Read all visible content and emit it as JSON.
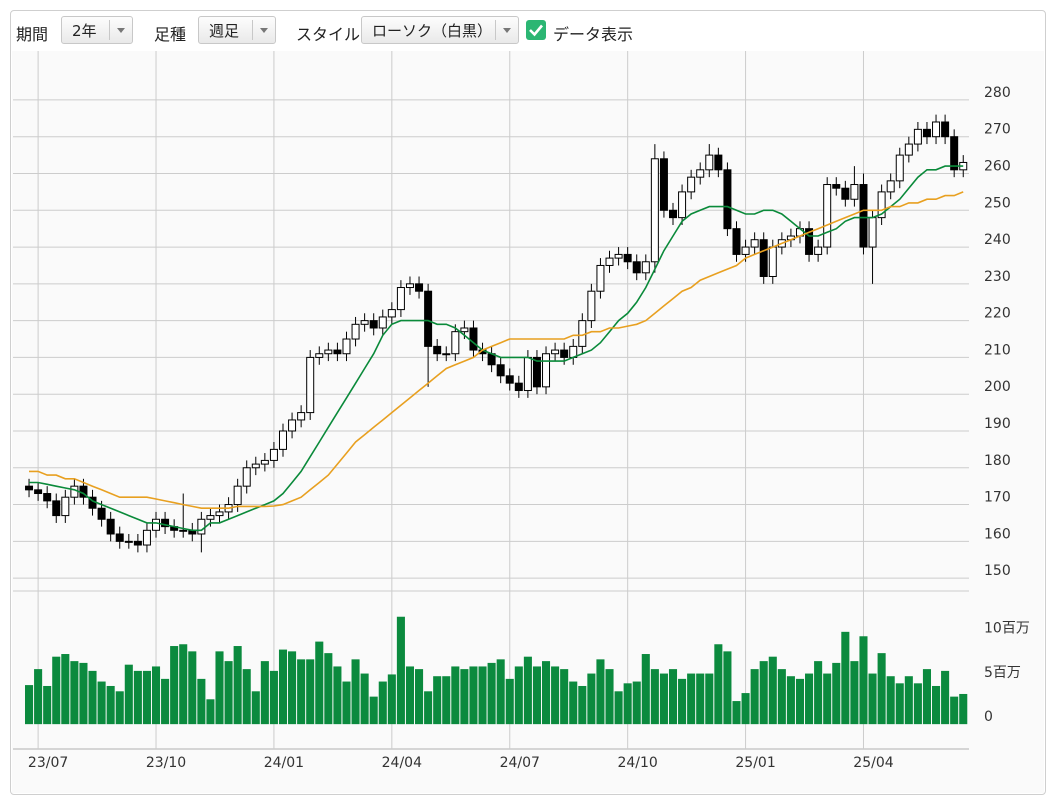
{
  "controls": {
    "period_label": "期間",
    "period_value": "2年",
    "interval_label": "足種",
    "interval_value": "週足",
    "style_label": "スタイル",
    "style_value": "ローソク（白黒）",
    "data_label": "データ表示"
  },
  "chart_data": {
    "type": "candlestick",
    "categories": [
      null,
      "23/07",
      null,
      null,
      null,
      null,
      null,
      null,
      null,
      null,
      null,
      null,
      null,
      null,
      "23/10",
      null,
      null,
      null,
      null,
      null,
      null,
      null,
      null,
      null,
      null,
      null,
      null,
      "24/01",
      null,
      null,
      null,
      null,
      null,
      null,
      null,
      null,
      null,
      null,
      null,
      null,
      "24/04",
      null,
      null,
      null,
      null,
      null,
      null,
      null,
      null,
      null,
      null,
      null,
      null,
      "24/07",
      null,
      null,
      null,
      null,
      null,
      null,
      null,
      null,
      null,
      null,
      null,
      null,
      "24/10",
      null,
      null,
      null,
      null,
      null,
      null,
      null,
      null,
      null,
      null,
      null,
      null,
      "25/01",
      null,
      null,
      null,
      null,
      null,
      null,
      null,
      null,
      null,
      null,
      null,
      null,
      "25/04",
      null,
      null,
      null,
      null,
      null,
      null,
      null,
      null,
      null,
      null,
      null
    ],
    "open": [
      175,
      174,
      173,
      171,
      167,
      172,
      175,
      172,
      169,
      166,
      162,
      160,
      160,
      159,
      163,
      166,
      164,
      163,
      163,
      162,
      166,
      167,
      168,
      170,
      175,
      180,
      181,
      182,
      185,
      190,
      193,
      195,
      210,
      211,
      212,
      211,
      215,
      219,
      220,
      218,
      221,
      223,
      229,
      230,
      228,
      213,
      211,
      211,
      217,
      218,
      212,
      211,
      208,
      205,
      203,
      201,
      210,
      202,
      211,
      212,
      210,
      213,
      220,
      228,
      235,
      237,
      238,
      236,
      233,
      236,
      264,
      250,
      248,
      255,
      259,
      261,
      265,
      261,
      245,
      238,
      240,
      242,
      232,
      240,
      242,
      243,
      245,
      238,
      240,
      257,
      256,
      253,
      257,
      240,
      248,
      255,
      258,
      265,
      268,
      272,
      270,
      274,
      270,
      261
    ],
    "high": [
      177,
      176,
      175,
      173,
      174,
      177,
      177,
      174,
      171,
      168,
      164,
      162,
      162,
      165,
      168,
      168,
      166,
      173,
      165,
      168,
      169,
      170,
      172,
      177,
      182,
      183,
      184,
      187,
      192,
      195,
      197,
      212,
      213,
      214,
      214,
      217,
      221,
      222,
      222,
      223,
      225,
      231,
      232,
      232,
      230,
      215,
      213,
      219,
      220,
      220,
      214,
      213,
      210,
      207,
      205,
      212,
      212,
      213,
      214,
      214,
      215,
      222,
      230,
      237,
      239,
      240,
      240,
      238,
      238,
      268,
      266,
      252,
      257,
      261,
      263,
      268,
      267,
      263,
      247,
      242,
      244,
      244,
      242,
      244,
      245,
      247,
      247,
      242,
      259,
      259,
      258,
      262,
      260,
      250,
      257,
      260,
      267,
      270,
      274,
      274,
      276,
      276,
      272,
      265
    ],
    "low": [
      172,
      171,
      169,
      165,
      165,
      170,
      170,
      167,
      164,
      160,
      158,
      158,
      157,
      157,
      161,
      162,
      161,
      161,
      160,
      157,
      164,
      165,
      166,
      168,
      173,
      178,
      179,
      180,
      183,
      188,
      191,
      193,
      208,
      209,
      209,
      209,
      213,
      217,
      216,
      216,
      219,
      221,
      227,
      226,
      202,
      209,
      209,
      209,
      215,
      210,
      209,
      206,
      203,
      201,
      199,
      199,
      200,
      200,
      209,
      208,
      208,
      211,
      218,
      226,
      233,
      235,
      234,
      231,
      231,
      233,
      248,
      246,
      246,
      253,
      257,
      259,
      259,
      243,
      236,
      236,
      238,
      230,
      230,
      238,
      240,
      241,
      236,
      236,
      238,
      254,
      251,
      251,
      238,
      230,
      246,
      253,
      256,
      263,
      266,
      268,
      268,
      268,
      259,
      259
    ],
    "close": [
      174,
      173,
      171,
      167,
      172,
      175,
      172,
      169,
      166,
      162,
      160,
      160,
      159,
      163,
      166,
      164,
      163,
      163,
      162,
      166,
      167,
      168,
      170,
      175,
      180,
      181,
      182,
      185,
      190,
      193,
      195,
      210,
      211,
      212,
      211,
      215,
      219,
      220,
      218,
      221,
      223,
      229,
      230,
      228,
      213,
      211,
      211,
      217,
      218,
      212,
      211,
      208,
      205,
      203,
      201,
      210,
      202,
      211,
      212,
      210,
      213,
      220,
      228,
      235,
      237,
      238,
      236,
      233,
      236,
      264,
      250,
      248,
      255,
      259,
      261,
      265,
      261,
      245,
      238,
      240,
      242,
      232,
      240,
      242,
      243,
      245,
      238,
      240,
      257,
      256,
      253,
      257,
      240,
      248,
      255,
      258,
      265,
      268,
      272,
      270,
      274,
      270,
      261,
      263
    ],
    "up_color": "#ffffff",
    "down_color": "#000000",
    "ma_series": [
      {
        "color": "#0a8a3a",
        "values": [
          176,
          176,
          175.5,
          175,
          174.5,
          174,
          173,
          171,
          170,
          169,
          168,
          167,
          166,
          165,
          165,
          164.5,
          164,
          163.5,
          163,
          163,
          165,
          165,
          166,
          167,
          168,
          169,
          170,
          171,
          173,
          176,
          179,
          183,
          187,
          191,
          195,
          199,
          203,
          207,
          211,
          216,
          219,
          220,
          220,
          220,
          220,
          219,
          219,
          218,
          216,
          214,
          212,
          211,
          210,
          210,
          210,
          210,
          209,
          209,
          209,
          209,
          210,
          211,
          212,
          214,
          217,
          220,
          222,
          225,
          229,
          234,
          239,
          243,
          247,
          249,
          250,
          251,
          251,
          251,
          250,
          249,
          249,
          250,
          250,
          249,
          247,
          245,
          243,
          243,
          244,
          245,
          247,
          248,
          248,
          248,
          249,
          251,
          253,
          256,
          259,
          261,
          261,
          262,
          262,
          262
        ]
      },
      {
        "color": "#e8a020",
        "values": [
          179,
          179,
          178,
          178,
          177,
          177,
          176,
          175,
          174,
          173,
          172,
          172,
          172,
          172,
          171.5,
          171,
          170.5,
          170,
          169.5,
          169,
          169,
          169,
          169,
          169.5,
          169.5,
          169.5,
          169.5,
          169.6,
          170,
          171,
          172,
          174,
          176,
          178,
          181,
          184,
          187,
          189,
          191,
          193,
          195,
          197,
          199,
          201,
          203,
          205,
          207,
          208,
          209,
          210,
          212,
          213,
          214,
          215,
          215,
          215,
          215,
          215,
          215,
          215,
          216,
          216,
          217,
          217,
          218,
          218,
          218.5,
          219,
          220,
          222,
          224,
          226,
          228,
          229,
          231,
          232,
          233,
          234,
          235,
          237,
          238,
          239,
          240,
          241,
          242,
          243,
          244,
          245,
          246,
          247,
          248,
          249,
          250,
          250,
          250,
          251,
          251,
          252,
          252,
          253,
          253,
          254,
          254,
          255
        ]
      }
    ],
    "volume": [
      4.4,
      6.2,
      4.3,
      7.6,
      7.9,
      7.1,
      6.9,
      6.0,
      4.8,
      4.3,
      3.7,
      6.7,
      6.0,
      6.0,
      6.5,
      5.1,
      8.8,
      9.0,
      8.2,
      5.1,
      2.8,
      8.2,
      7.1,
      8.8,
      6.2,
      3.7,
      7.1,
      6.0,
      8.4,
      8.2,
      7.3,
      7.3,
      9.3,
      8.0,
      6.5,
      4.8,
      7.3,
      5.7,
      3.1,
      4.8,
      5.6,
      12.1,
      6.5,
      6.2,
      3.7,
      5.4,
      5.4,
      6.5,
      6.2,
      6.5,
      6.5,
      6.9,
      7.3,
      5.1,
      6.5,
      7.6,
      6.5,
      7.1,
      6.5,
      6.2,
      4.8,
      4.3,
      5.7,
      7.3,
      6.2,
      3.7,
      4.6,
      4.8,
      7.9,
      6.2,
      5.7,
      6.2,
      5.1,
      5.7,
      5.7,
      5.7,
      9.0,
      8.2,
      2.6,
      3.5,
      6.2,
      7.1,
      7.6,
      6.2,
      5.4,
      5.1,
      5.7,
      7.1,
      5.7,
      6.9,
      10.4,
      7.1,
      9.9,
      5.7,
      8.0,
      5.4,
      4.6,
      5.4,
      4.6,
      6.2,
      4.3,
      6.0,
      3.1,
      3.4
    ],
    "volume_color": "#0b8a3e",
    "ylim": [
      146.5,
      293.3
    ],
    "yticks": [
      150,
      160,
      170,
      180,
      190,
      200,
      210,
      220,
      230,
      240,
      250,
      260,
      270,
      280
    ],
    "volume_ylim": [
      -2.8,
      15
    ],
    "volume_ticks": [
      0,
      {
        "value": 5,
        "label": "5百万"
      },
      {
        "value": 10,
        "label": "10百万"
      }
    ],
    "grid": true
  }
}
